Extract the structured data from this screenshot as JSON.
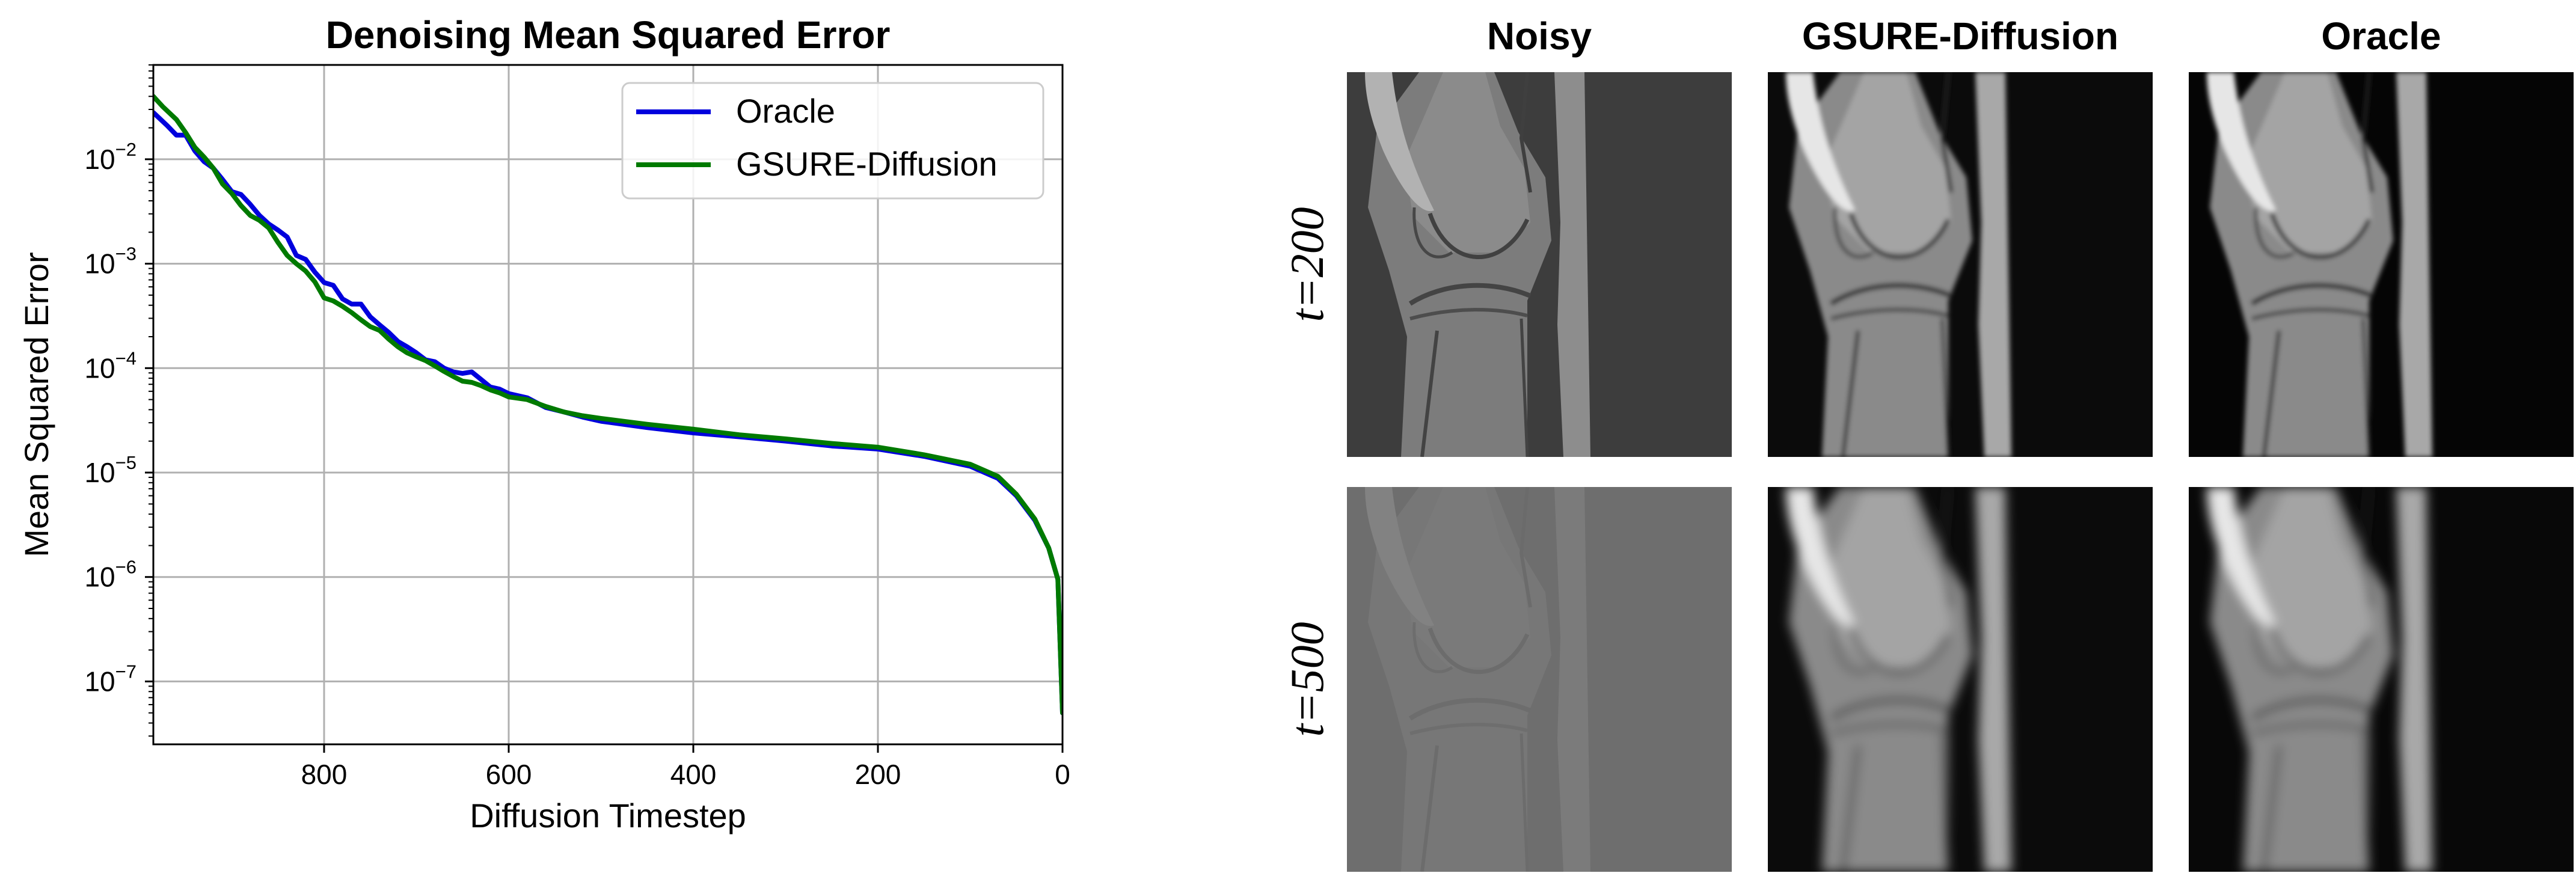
{
  "chart_data": {
    "type": "line",
    "title": "Denoising Mean Squared Error",
    "xlabel": "Diffusion Timestep",
    "ylabel": "Mean Squared Error",
    "x_scale": "linear",
    "x_reversed": true,
    "xlim": [
      985,
      0
    ],
    "y_scale": "log",
    "ylim": [
      2.5e-08,
      0.08
    ],
    "grid": true,
    "legend_position": "top-right",
    "x_ticks": [
      {
        "value": 800,
        "label": "800"
      },
      {
        "value": 600,
        "label": "600"
      },
      {
        "value": 400,
        "label": "400"
      },
      {
        "value": 200,
        "label": "200"
      },
      {
        "value": 0,
        "label": "0"
      }
    ],
    "y_ticks": [
      {
        "value": 0.01,
        "base": "10",
        "exp": "−2"
      },
      {
        "value": 0.001,
        "base": "10",
        "exp": "−3"
      },
      {
        "value": 0.0001,
        "base": "10",
        "exp": "−4"
      },
      {
        "value": 1e-05,
        "base": "10",
        "exp": "−5"
      },
      {
        "value": 1e-06,
        "base": "10",
        "exp": "−6"
      },
      {
        "value": 1e-07,
        "base": "10",
        "exp": "−7"
      }
    ],
    "series": [
      {
        "name": "Oracle",
        "color": "#0000dd",
        "points": [
          [
            985,
            0.028
          ],
          [
            970,
            0.021
          ],
          [
            960,
            0.017
          ],
          [
            950,
            0.017
          ],
          [
            940,
            0.012
          ],
          [
            930,
            0.0095
          ],
          [
            920,
            0.0082
          ],
          [
            910,
            0.0064
          ],
          [
            900,
            0.0049
          ],
          [
            890,
            0.0046
          ],
          [
            880,
            0.0037
          ],
          [
            870,
            0.0029
          ],
          [
            860,
            0.0024
          ],
          [
            850,
            0.0021
          ],
          [
            840,
            0.0018
          ],
          [
            830,
            0.0012
          ],
          [
            820,
            0.0011
          ],
          [
            810,
            0.00083
          ],
          [
            800,
            0.00066
          ],
          [
            790,
            0.00062
          ],
          [
            780,
            0.00046
          ],
          [
            770,
            0.00041
          ],
          [
            760,
            0.00041
          ],
          [
            750,
            0.00031
          ],
          [
            740,
            0.00026
          ],
          [
            730,
            0.00022
          ],
          [
            720,
            0.00018
          ],
          [
            710,
            0.00016
          ],
          [
            700,
            0.00014
          ],
          [
            690,
            0.00012
          ],
          [
            680,
            0.000115
          ],
          [
            670,
            0.0001
          ],
          [
            660,
            9.2e-05
          ],
          [
            650,
            8.9e-05
          ],
          [
            640,
            9.2e-05
          ],
          [
            630,
            7.8e-05
          ],
          [
            620,
            6.6e-05
          ],
          [
            610,
            6.3e-05
          ],
          [
            600,
            5.7e-05
          ],
          [
            580,
            5.2e-05
          ],
          [
            560,
            4.2e-05
          ],
          [
            540,
            3.8e-05
          ],
          [
            520,
            3.4e-05
          ],
          [
            500,
            3.1e-05
          ],
          [
            450,
            2.7e-05
          ],
          [
            400,
            2.4e-05
          ],
          [
            350,
            2.2e-05
          ],
          [
            300,
            2e-05
          ],
          [
            250,
            1.8e-05
          ],
          [
            200,
            1.68e-05
          ],
          [
            150,
            1.43e-05
          ],
          [
            100,
            1.15e-05
          ],
          [
            70,
            8.8e-06
          ],
          [
            50,
            6e-06
          ],
          [
            30,
            3.5e-06
          ],
          [
            15,
            1.9e-06
          ],
          [
            5,
            9.5e-07
          ],
          [
            0,
            5e-08
          ]
        ]
      },
      {
        "name": "GSURE-Diffusion",
        "color": "#007a00",
        "points": [
          [
            985,
            0.04
          ],
          [
            975,
            0.032
          ],
          [
            960,
            0.024
          ],
          [
            950,
            0.018
          ],
          [
            940,
            0.013
          ],
          [
            930,
            0.0105
          ],
          [
            920,
            0.0082
          ],
          [
            910,
            0.0058
          ],
          [
            900,
            0.0047
          ],
          [
            890,
            0.0036
          ],
          [
            880,
            0.0029
          ],
          [
            870,
            0.0026
          ],
          [
            860,
            0.0022
          ],
          [
            850,
            0.0016
          ],
          [
            840,
            0.0012
          ],
          [
            830,
            0.001
          ],
          [
            820,
            0.00085
          ],
          [
            810,
            0.00067
          ],
          [
            800,
            0.00047
          ],
          [
            790,
            0.00044
          ],
          [
            780,
            0.00039
          ],
          [
            770,
            0.00034
          ],
          [
            760,
            0.00029
          ],
          [
            750,
            0.00025
          ],
          [
            740,
            0.00023
          ],
          [
            730,
            0.00019
          ],
          [
            720,
            0.00016
          ],
          [
            710,
            0.00014
          ],
          [
            700,
            0.000128
          ],
          [
            690,
            0.000118
          ],
          [
            680,
            0.000105
          ],
          [
            670,
            9.3e-05
          ],
          [
            660,
            8.3e-05
          ],
          [
            650,
            7.5e-05
          ],
          [
            640,
            7.3e-05
          ],
          [
            630,
            6.8e-05
          ],
          [
            620,
            6.2e-05
          ],
          [
            610,
            5.8e-05
          ],
          [
            600,
            5.3e-05
          ],
          [
            580,
            5e-05
          ],
          [
            560,
            4.3e-05
          ],
          [
            540,
            3.8e-05
          ],
          [
            520,
            3.5e-05
          ],
          [
            500,
            3.3e-05
          ],
          [
            450,
            2.9e-05
          ],
          [
            400,
            2.6e-05
          ],
          [
            350,
            2.3e-05
          ],
          [
            300,
            2.1e-05
          ],
          [
            250,
            1.9e-05
          ],
          [
            200,
            1.75e-05
          ],
          [
            150,
            1.48e-05
          ],
          [
            100,
            1.2e-05
          ],
          [
            70,
            9.2e-06
          ],
          [
            50,
            6.2e-06
          ],
          [
            30,
            3.6e-06
          ],
          [
            15,
            1.9e-06
          ],
          [
            5,
            9.5e-07
          ],
          [
            0,
            5e-08
          ]
        ]
      }
    ]
  },
  "image_grid": {
    "columns": [
      "Noisy",
      "GSURE-Diffusion",
      "Oracle"
    ],
    "rows": [
      "t=200",
      "t=500"
    ]
  }
}
